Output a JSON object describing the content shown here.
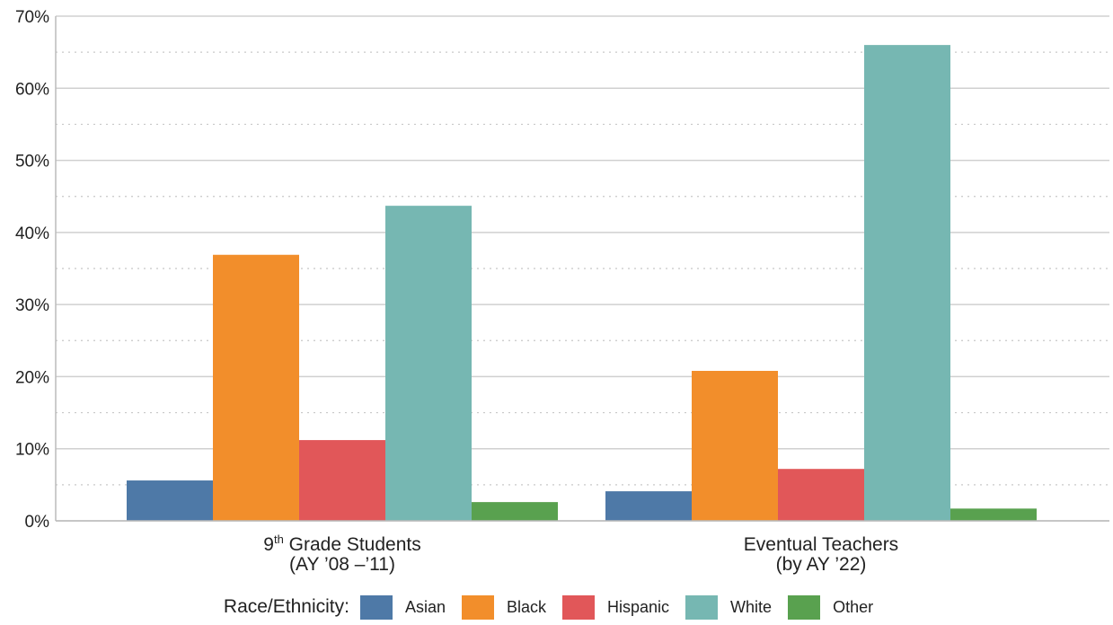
{
  "chart_data": {
    "type": "bar",
    "categories": [
      {
        "main": "9",
        "sup": "th",
        "rest": " Grade Students",
        "line2": "(AY ’08 –’11)"
      },
      {
        "main": "Eventual Teachers",
        "sup": "",
        "rest": "",
        "line2": "(by AY ’22)"
      }
    ],
    "series": [
      {
        "name": "Asian",
        "color": "#4e79a7",
        "values": [
          5.6,
          4.1
        ]
      },
      {
        "name": "Black",
        "color": "#f28e2b",
        "values": [
          36.9,
          20.8
        ]
      },
      {
        "name": "Hispanic",
        "color": "#e15759",
        "values": [
          11.2,
          7.2
        ]
      },
      {
        "name": "White",
        "color": "#76b7b2",
        "values": [
          43.7,
          66.0
        ]
      },
      {
        "name": "Other",
        "color": "#59a14f",
        "values": [
          2.6,
          1.7
        ]
      }
    ],
    "ylim": [
      0,
      70
    ],
    "yticks": [
      "0%",
      "10%",
      "20%",
      "30%",
      "40%",
      "50%",
      "60%",
      "70%"
    ],
    "legend_title": "Race/Ethnicity:",
    "legend_position": "bottom",
    "grid": true
  }
}
